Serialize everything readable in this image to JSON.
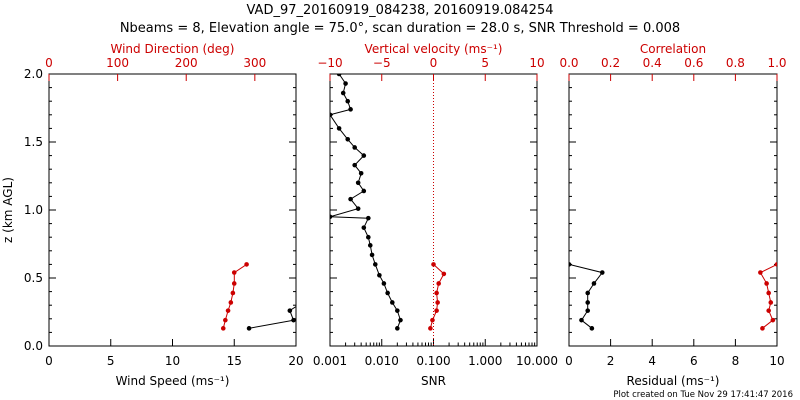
{
  "title": "VAD_97_20160919_084238, 20160919.084254",
  "subtitle": "Nbeams = 8, Elevation angle = 75.0°, scan duration = 28.0 s, SNR Threshold = 0.008",
  "footer": "Plot created on Tue Nov 29 17:41:47 2016",
  "colors": {
    "primary": "#000000",
    "secondary": "#cc0000",
    "background": "#ffffff"
  },
  "chart_data": [
    {
      "type": "line",
      "ylabel": "z (km AGL)",
      "ylim": [
        0,
        2.0
      ],
      "yticks": [
        "0.0",
        "0.5",
        "1.0",
        "1.5",
        "2.0"
      ],
      "bottom_axis": {
        "label": "Wind Speed (ms⁻¹)",
        "xlim": [
          0,
          20
        ],
        "ticks": [
          "0",
          "5",
          "10",
          "15",
          "20"
        ],
        "scale": "linear"
      },
      "top_axis": {
        "label": "Wind Direction (deg)",
        "xlim": [
          0,
          360
        ],
        "ticks": [
          "0",
          "100",
          "200",
          "300"
        ],
        "scale": "linear"
      },
      "series": [
        {
          "axis": "bottom",
          "color": "#000000",
          "points": [
            {
              "x": 16.2,
              "y": 0.13
            },
            {
              "x": 19.8,
              "y": 0.19
            },
            {
              "x": 19.5,
              "y": 0.26
            },
            {
              "x": 20.5,
              "y": 0.32
            }
          ]
        },
        {
          "axis": "top",
          "color": "#cc0000",
          "points": [
            {
              "x": 254,
              "y": 0.13
            },
            {
              "x": 257,
              "y": 0.19
            },
            {
              "x": 261,
              "y": 0.26
            },
            {
              "x": 265,
              "y": 0.32
            },
            {
              "x": 268,
              "y": 0.39
            },
            {
              "x": 270,
              "y": 0.46
            },
            {
              "x": 270,
              "y": 0.54
            },
            {
              "x": 288,
              "y": 0.6
            }
          ]
        }
      ]
    },
    {
      "type": "line",
      "ylim": [
        0,
        2.0
      ],
      "bottom_axis": {
        "label": "SNR",
        "xlim": [
          0.001,
          10
        ],
        "ticks": [
          "0.001",
          "0.010",
          "0.100",
          "1.000",
          "10.000"
        ],
        "scale": "log"
      },
      "top_axis": {
        "label": "Vertical velocity (ms⁻¹)",
        "xlim": [
          -10,
          10
        ],
        "ticks": [
          "−10",
          "−5",
          "0",
          "5",
          "10"
        ],
        "scale": "linear"
      },
      "reference_line": {
        "axis": "top",
        "x": 0,
        "style": "dotted",
        "color": "#cc0000"
      },
      "series": [
        {
          "axis": "bottom",
          "color": "#000000",
          "points": [
            {
              "x": 0.02,
              "y": 0.13
            },
            {
              "x": 0.023,
              "y": 0.19
            },
            {
              "x": 0.02,
              "y": 0.26
            },
            {
              "x": 0.016,
              "y": 0.32
            },
            {
              "x": 0.013,
              "y": 0.39
            },
            {
              "x": 0.011,
              "y": 0.46
            },
            {
              "x": 0.009,
              "y": 0.52
            },
            {
              "x": 0.0075,
              "y": 0.6
            },
            {
              "x": 0.0065,
              "y": 0.67
            },
            {
              "x": 0.006,
              "y": 0.74
            },
            {
              "x": 0.0055,
              "y": 0.8
            },
            {
              "x": 0.0045,
              "y": 0.87
            },
            {
              "x": 0.0055,
              "y": 0.94
            },
            {
              "x": 0.001,
              "y": 0.95
            },
            {
              "x": 0.0035,
              "y": 1.01
            },
            {
              "x": 0.0025,
              "y": 1.08
            },
            {
              "x": 0.0045,
              "y": 1.14
            },
            {
              "x": 0.0035,
              "y": 1.2
            },
            {
              "x": 0.004,
              "y": 1.27
            },
            {
              "x": 0.003,
              "y": 1.33
            },
            {
              "x": 0.0045,
              "y": 1.4
            },
            {
              "x": 0.003,
              "y": 1.46
            },
            {
              "x": 0.0022,
              "y": 1.52
            },
            {
              "x": 0.0015,
              "y": 1.6
            },
            {
              "x": 0.001,
              "y": 1.7
            },
            {
              "x": 0.0025,
              "y": 1.74
            },
            {
              "x": 0.0022,
              "y": 1.8
            },
            {
              "x": 0.0018,
              "y": 1.86
            },
            {
              "x": 0.002,
              "y": 1.93
            },
            {
              "x": 0.0015,
              "y": 2.0
            }
          ]
        },
        {
          "axis": "top",
          "color": "#cc0000",
          "points": [
            {
              "x": -0.3,
              "y": 0.13
            },
            {
              "x": -0.1,
              "y": 0.19
            },
            {
              "x": 0.3,
              "y": 0.26
            },
            {
              "x": 0.4,
              "y": 0.32
            },
            {
              "x": 0.3,
              "y": 0.39
            },
            {
              "x": 0.5,
              "y": 0.46
            },
            {
              "x": 1.0,
              "y": 0.53
            },
            {
              "x": 0.0,
              "y": 0.6
            }
          ]
        }
      ]
    },
    {
      "type": "line",
      "ylim": [
        0,
        2.0
      ],
      "bottom_axis": {
        "label": "Residual (ms⁻¹)",
        "xlim": [
          0,
          10
        ],
        "ticks": [
          "0",
          "2",
          "4",
          "6",
          "8",
          "10"
        ],
        "scale": "linear"
      },
      "top_axis": {
        "label": "Correlation",
        "xlim": [
          0,
          1.0
        ],
        "ticks": [
          "0.0",
          "0.2",
          "0.4",
          "0.6",
          "0.8",
          "1.0"
        ],
        "scale": "linear"
      },
      "series": [
        {
          "axis": "bottom",
          "color": "#000000",
          "points": [
            {
              "x": 1.1,
              "y": 0.13
            },
            {
              "x": 0.6,
              "y": 0.19
            },
            {
              "x": 0.9,
              "y": 0.26
            },
            {
              "x": 0.9,
              "y": 0.32
            },
            {
              "x": 0.9,
              "y": 0.39
            },
            {
              "x": 1.2,
              "y": 0.46
            },
            {
              "x": 1.6,
              "y": 0.54
            },
            {
              "x": 0.0,
              "y": 0.6
            }
          ]
        },
        {
          "axis": "top",
          "color": "#cc0000",
          "points": [
            {
              "x": 0.93,
              "y": 0.13
            },
            {
              "x": 0.98,
              "y": 0.19
            },
            {
              "x": 0.96,
              "y": 0.26
            },
            {
              "x": 0.97,
              "y": 0.32
            },
            {
              "x": 0.96,
              "y": 0.39
            },
            {
              "x": 0.95,
              "y": 0.46
            },
            {
              "x": 0.92,
              "y": 0.54
            },
            {
              "x": 1.0,
              "y": 0.6
            }
          ]
        }
      ]
    }
  ]
}
